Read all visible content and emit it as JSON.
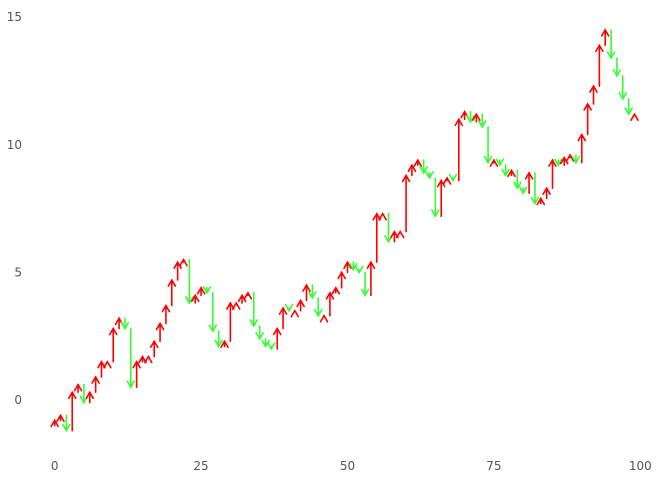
{
  "chart_data": {
    "type": "line",
    "title": "",
    "xlabel": "",
    "ylabel": "",
    "xlim": [
      -2.5,
      102.5
    ],
    "ylim": [
      -2,
      15.4
    ],
    "grid": false,
    "x_ticks": [
      0,
      25,
      50,
      75,
      100
    ],
    "x_tick_labels": [
      "0",
      "25",
      "50",
      "75",
      "100"
    ],
    "y_ticks": [
      0,
      5,
      10,
      15
    ],
    "y_tick_labels": [
      "0",
      "5",
      "10",
      "15"
    ],
    "colors": {
      "up": "#ff0000",
      "down": "#33ff33"
    },
    "series": [
      {
        "x": [
          0,
          1,
          2,
          3,
          4,
          5,
          6,
          7,
          8,
          9,
          10,
          11,
          12,
          13,
          14,
          15,
          16,
          17,
          18,
          19,
          20,
          21,
          22,
          23,
          24,
          25,
          26,
          27,
          28,
          29,
          30,
          31,
          32,
          33,
          34,
          35,
          36,
          37,
          38,
          39,
          40,
          41,
          42,
          43,
          44,
          45,
          46,
          47,
          48,
          49,
          50,
          51,
          52,
          53,
          54,
          55,
          56,
          57,
          58,
          59,
          60,
          61,
          62,
          63,
          64,
          65,
          66,
          67,
          68,
          69,
          70,
          71,
          72,
          73,
          74,
          75,
          76,
          77,
          78,
          79,
          80,
          81,
          82,
          83,
          84,
          85,
          86,
          87,
          88,
          89,
          90,
          91,
          92,
          93,
          94,
          95,
          96,
          97,
          98,
          99
        ],
        "y": [
          -0.8,
          -0.6,
          -1.2,
          0.3,
          0.6,
          -0.1,
          0.3,
          0.9,
          1.5,
          1.5,
          2.8,
          3.2,
          2.8,
          0.5,
          1.5,
          1.7,
          1.7,
          2.3,
          3.0,
          3.7,
          4.7,
          5.4,
          5.5,
          3.8,
          4.1,
          4.4,
          4.2,
          2.7,
          2.1,
          2.3,
          3.8,
          3.8,
          4.1,
          4.2,
          2.9,
          2.4,
          2.1,
          2.0,
          2.8,
          3.6,
          3.5,
          3.5,
          3.9,
          4.5,
          4.0,
          3.3,
          3.3,
          4.2,
          4.4,
          5.0,
          5.4,
          5.1,
          5.0,
          4.1,
          5.4,
          7.3,
          7.3,
          6.2,
          6.6,
          6.6,
          8.8,
          9.2,
          9.4,
          8.9,
          8.7,
          7.2,
          8.6,
          8.7,
          8.6,
          11.0,
          11.3,
          10.9,
          11.2,
          10.7,
          9.3,
          9.4,
          9.2,
          8.8,
          9.0,
          8.3,
          8.1,
          8.9,
          7.7,
          7.9,
          8.3,
          9.4,
          9.2,
          9.5,
          9.6,
          9.3,
          10.4,
          11.6,
          12.3,
          13.9,
          14.5,
          13.4,
          12.7,
          11.8,
          11.2,
          11.2
        ]
      }
    ]
  }
}
